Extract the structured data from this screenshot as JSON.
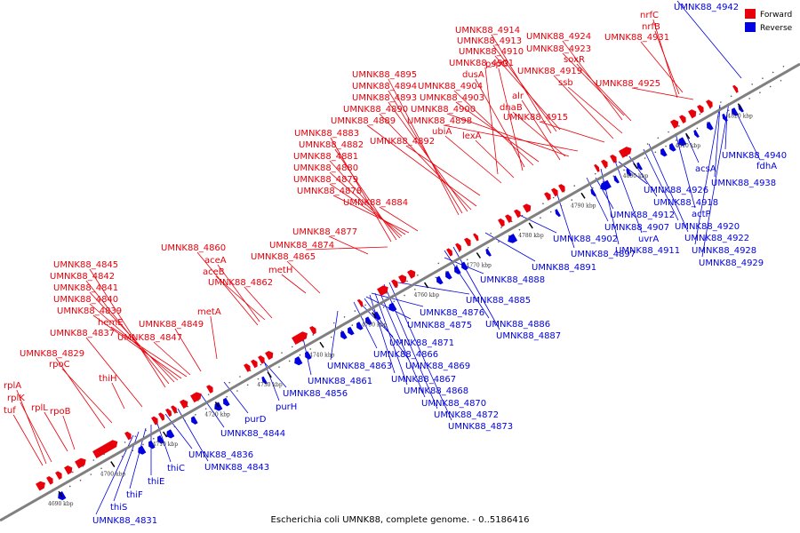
{
  "caption": "Escherichia coli UMNK88, complete genome. - 0..5186416",
  "legend": {
    "forward": {
      "label": "Forward",
      "color": "#e8000b"
    },
    "reverse": {
      "label": "Reverse",
      "color": "#0000e0"
    }
  },
  "axis_color": "#808080",
  "ticks": [
    "4690 kbp",
    "4700 kbp",
    "4710 kbp",
    "4720 kbp",
    "4730 kbp",
    "4740 kbp",
    "4750 kbp",
    "4760 kbp",
    "4770 kbp",
    "4780 kbp",
    "4790 kbp",
    "4800 kbp",
    "4810 kbp",
    "4820 kbp"
  ],
  "forward_labels": [
    "nrfC",
    "nrfB",
    "UMNK88_4931",
    "UMNK88_4914",
    "UMNK88_4913",
    "UMNK88_4910",
    "UMNK88_4924",
    "UMNK88_4923",
    "UMNK88_4901",
    "pspG",
    "dusA",
    "UMNK88_4895",
    "UMNK88_4894",
    "UMNK88_4904",
    "UMNK88_4893",
    "UMNK88_4903",
    "UMNK88_4890",
    "UMNK88_4900",
    "UMNK88_4889",
    "UMNK88_4898",
    "soxR",
    "UMNK88_4919",
    "ssb",
    "UMNK88_4925",
    "alr",
    "dnaB",
    "UMNK88_4915",
    "ubiA",
    "UMNK88_4883",
    "UMNK88_4892",
    "lexA",
    "UMNK88_4882",
    "UMNK88_4881",
    "UMNK88_4880",
    "UMNK88_4879",
    "UMNK88_4878",
    "UMNK88_4884",
    "UMNK88_4877",
    "UMNK88_4860",
    "UMNK88_4874",
    "aceA",
    "UMNK88_4865",
    "aceB",
    "metH",
    "UMNK88_4862",
    "UMNK88_4845",
    "UMNK88_4842",
    "UMNK88_4841",
    "UMNK88_4840",
    "UMNK88_4839",
    "hemE",
    "UMNK88_4849",
    "metA",
    "UMNK88_4837",
    "UMNK88_4847",
    "UMNK88_4829",
    "rpoC",
    "thiH",
    "rplA",
    "rplK",
    "rplL",
    "tuf",
    "rpoB"
  ],
  "reverse_labels": [
    "UMNK88_4942",
    "UMNK88_4940",
    "fdhA",
    "acsA",
    "UMNK88_4938",
    "UMNK88_4926",
    "UMNK88_4918",
    "actP",
    "UMNK88_4912",
    "UMNK88_4920",
    "UMNK88_4907",
    "UMNK88_4922",
    "uvrA",
    "UMNK88_4902",
    "UMNK88_4911",
    "UMNK88_4928",
    "UMNK88_4929",
    "UMNK88_4897",
    "UMNK88_4891",
    "UMNK88_4888",
    "UMNK88_4885",
    "UMNK88_4876",
    "UMNK88_4886",
    "UMNK88_4875",
    "UMNK88_4887",
    "UMNK88_4871",
    "UMNK88_4866",
    "UMNK88_4869",
    "UMNK88_4863",
    "UMNK88_4867",
    "UMNK88_4861",
    "UMNK88_4868",
    "UMNK88_4856",
    "UMNK88_4870",
    "purH",
    "UMNK88_4872",
    "purD",
    "UMNK88_4873",
    "UMNK88_4844",
    "UMNK88_4836",
    "UMNK88_4843",
    "thiC",
    "thiE",
    "thiF",
    "thiS",
    "UMNK88_4831"
  ]
}
